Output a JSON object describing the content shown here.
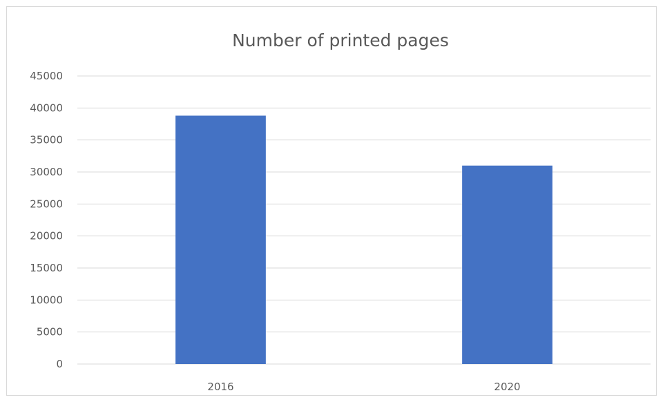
{
  "chart_data": {
    "type": "bar",
    "title": "Number of printed pages",
    "xlabel": "",
    "ylabel": "",
    "categories": [
      "2016",
      "2020"
    ],
    "series": [
      {
        "values": [
          38800,
          31000
        ],
        "color": "#4472c4"
      }
    ],
    "ylim": [
      0,
      45000
    ],
    "yticks": [
      "0",
      "5000",
      "10000",
      "15000",
      "20000",
      "25000",
      "30000",
      "35000",
      "40000",
      "45000"
    ],
    "grid": true,
    "legend": "none"
  }
}
